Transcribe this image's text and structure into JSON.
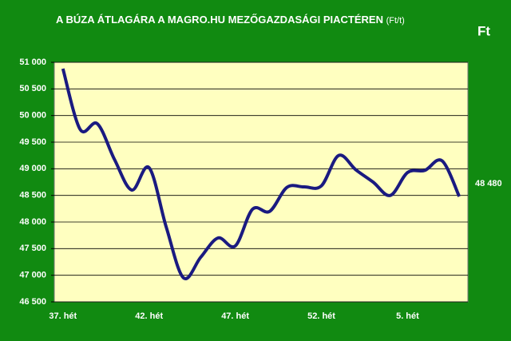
{
  "chart_data": {
    "type": "line",
    "title": "A BÚZA ÁTLAGÁRA A MAGRO.HU MEZŐGAZDASÁGI PIACTÉREN",
    "subtitle": "(Ft/t)",
    "y_label": "Ft",
    "annotations": [
      "48 480"
    ],
    "categories": [
      "37. hét",
      null,
      null,
      null,
      null,
      "42. hét",
      null,
      null,
      null,
      null,
      "47. hét",
      null,
      null,
      null,
      null,
      "52. hét",
      null,
      null,
      null,
      null,
      "5. hét",
      null,
      null,
      null
    ],
    "series": [
      {
        "name": "Búza",
        "color": "#1a1a80",
        "values": [
          50880,
          49740,
          49845,
          49170,
          48600,
          49020,
          47900,
          46950,
          47340,
          47700,
          47550,
          48240,
          48200,
          48650,
          48660,
          48680,
          49250,
          48980,
          48750,
          48500,
          48930,
          48970,
          49150,
          48480
        ]
      }
    ],
    "ylim": [
      46500,
      51000
    ],
    "yticks": [
      {
        "value": 46500,
        "label": "46 500"
      },
      {
        "value": 47000,
        "label": "47 000"
      },
      {
        "value": 47500,
        "label": "47 500"
      },
      {
        "value": 48000,
        "label": "48 000"
      },
      {
        "value": 48500,
        "label": "48 500"
      },
      {
        "value": 49000,
        "label": "49 000"
      },
      {
        "value": 49500,
        "label": "49 500"
      },
      {
        "value": 50000,
        "label": "50 000"
      },
      {
        "value": 50500,
        "label": "50 500"
      },
      {
        "value": 51000,
        "label": "51 000"
      }
    ],
    "grid": true,
    "plot_background": "#ffffc0",
    "background": "#118a11"
  }
}
